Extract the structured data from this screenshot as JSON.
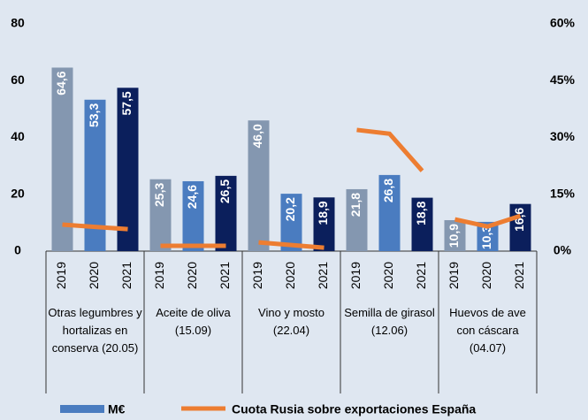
{
  "chart_data": {
    "type": "bar",
    "categories": [
      "Otras legumbres y hortalizas en conserva (20.05)",
      "Aceite de oliva (15.09)",
      "Vino y mosto (22.04)",
      "Semilla de girasol (12.06)",
      "Huevos de ave con cáscara (04.07)"
    ],
    "years": [
      "2019",
      "2020",
      "2021"
    ],
    "ylim": [
      0,
      80
    ],
    "yticks": [
      0,
      20,
      40,
      60,
      80
    ],
    "y2lim": [
      0,
      60
    ],
    "y2ticks": [
      {
        "value": 0,
        "label": "0%"
      },
      {
        "value": 15,
        "label": "15%"
      },
      {
        "value": 30,
        "label": "30%"
      },
      {
        "value": 45,
        "label": "45%"
      },
      {
        "value": 60,
        "label": "60%"
      }
    ],
    "series": [
      {
        "name": "M€",
        "color": "#4a7cc0",
        "colors": [
          "#8497b0",
          "#4a7cc0",
          "#0b1f5c"
        ],
        "values": [
          [
            64.6,
            53.3,
            57.5
          ],
          [
            25.3,
            24.6,
            26.5
          ],
          [
            46.0,
            20.2,
            18.9
          ],
          [
            21.8,
            26.8,
            18.8
          ],
          [
            10.9,
            10.3,
            16.6
          ]
        ],
        "value_labels": [
          [
            "64,6",
            "53,3",
            "57,5"
          ],
          [
            "25,3",
            "24,6",
            "26,5"
          ],
          [
            "46,0",
            "20,2",
            "18,9"
          ],
          [
            "21,8",
            "26,8",
            "18,8"
          ],
          [
            "10,9",
            "10,3",
            "16,6"
          ]
        ]
      },
      {
        "name": "Cuota Rusia sobre exportaciones España",
        "type": "line",
        "axis": "y2",
        "color": "#ed7d31",
        "values": [
          [
            7.0,
            6.4,
            5.8
          ],
          [
            1.4,
            1.4,
            1.4
          ],
          [
            2.3,
            1.6,
            0.9
          ],
          [
            32.0,
            31.0,
            21.2
          ],
          [
            8.4,
            6.5,
            9.3
          ]
        ]
      }
    ]
  }
}
